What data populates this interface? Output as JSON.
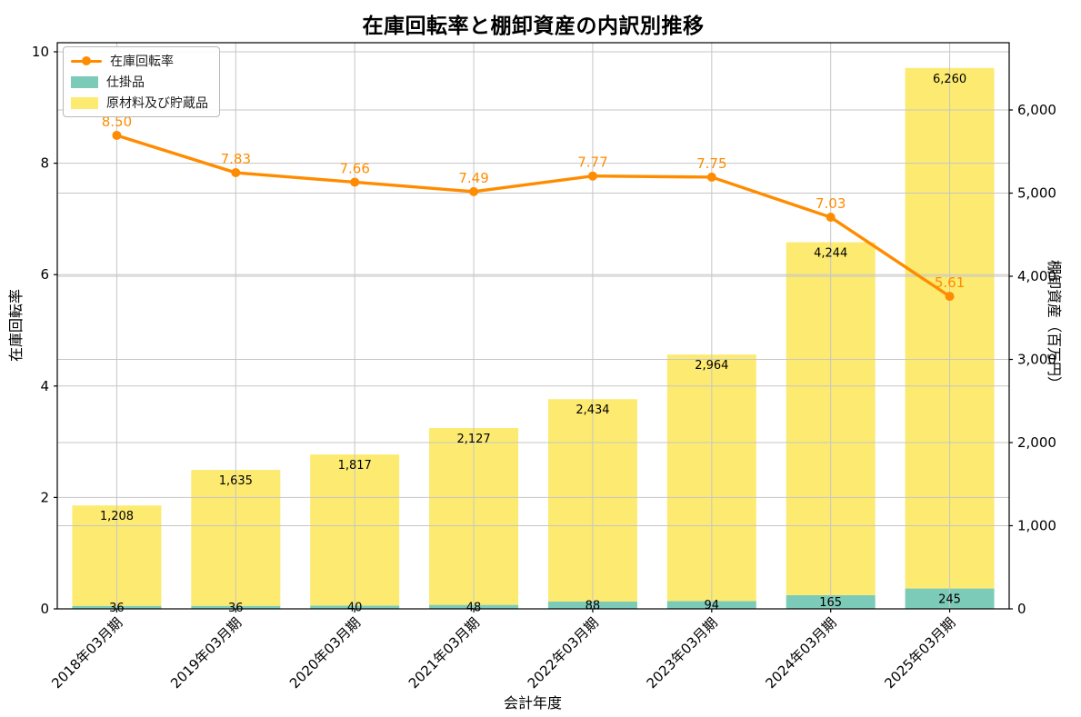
{
  "title": "在庫回転率と棚卸資産の内訳別推移",
  "chart_data": {
    "type": "combo-stacked-bar-line",
    "categories": [
      "2018年03月期",
      "2019年03月期",
      "2020年03月期",
      "2021年03月期",
      "2022年03月期",
      "2023年03月期",
      "2024年03月期",
      "2025年03月期"
    ],
    "xlabel": "会計年度",
    "left_axis": {
      "label": "在庫回転率",
      "min": 0,
      "max": 10,
      "ticks": [
        0,
        2,
        4,
        6,
        8,
        10
      ]
    },
    "right_axis": {
      "label": "棚卸資産（百万円）",
      "min": 0,
      "max": 6000,
      "ticks": [
        0,
        1000,
        2000,
        3000,
        4000,
        5000,
        6000
      ],
      "tick_format": "thousands-comma"
    },
    "grid": true,
    "legend": {
      "position": "upper-left",
      "entries": [
        "在庫回転率",
        "仕掛品",
        "原材料及び貯蔵品"
      ]
    },
    "series": [
      {
        "name": "在庫回転率",
        "type": "line",
        "axis": "left",
        "color": "#ff8c00",
        "values": [
          8.5,
          7.83,
          7.66,
          7.49,
          7.77,
          7.75,
          7.03,
          5.61
        ],
        "point_labels": [
          "8.50",
          "7.83",
          "7.66",
          "7.49",
          "7.77",
          "7.75",
          "7.03",
          "5.61"
        ]
      },
      {
        "name": "仕掛品",
        "type": "bar",
        "axis": "right",
        "stack": "inventory",
        "color": "#7ccbb8",
        "values": [
          36,
          36,
          40,
          48,
          88,
          94,
          165,
          245
        ]
      },
      {
        "name": "原材料及び貯蔵品",
        "type": "bar",
        "axis": "right",
        "stack": "inventory",
        "color": "#fdea71",
        "values": [
          1208,
          1635,
          1817,
          2127,
          2434,
          2964,
          4244,
          6260
        ]
      }
    ],
    "colors": {
      "line": "#ff8c00",
      "bar_wip": "#7ccbb8",
      "bar_raw": "#fdea71",
      "grid": "#c6c6c6",
      "spine": "#000000",
      "bar_label": "#000000"
    }
  }
}
